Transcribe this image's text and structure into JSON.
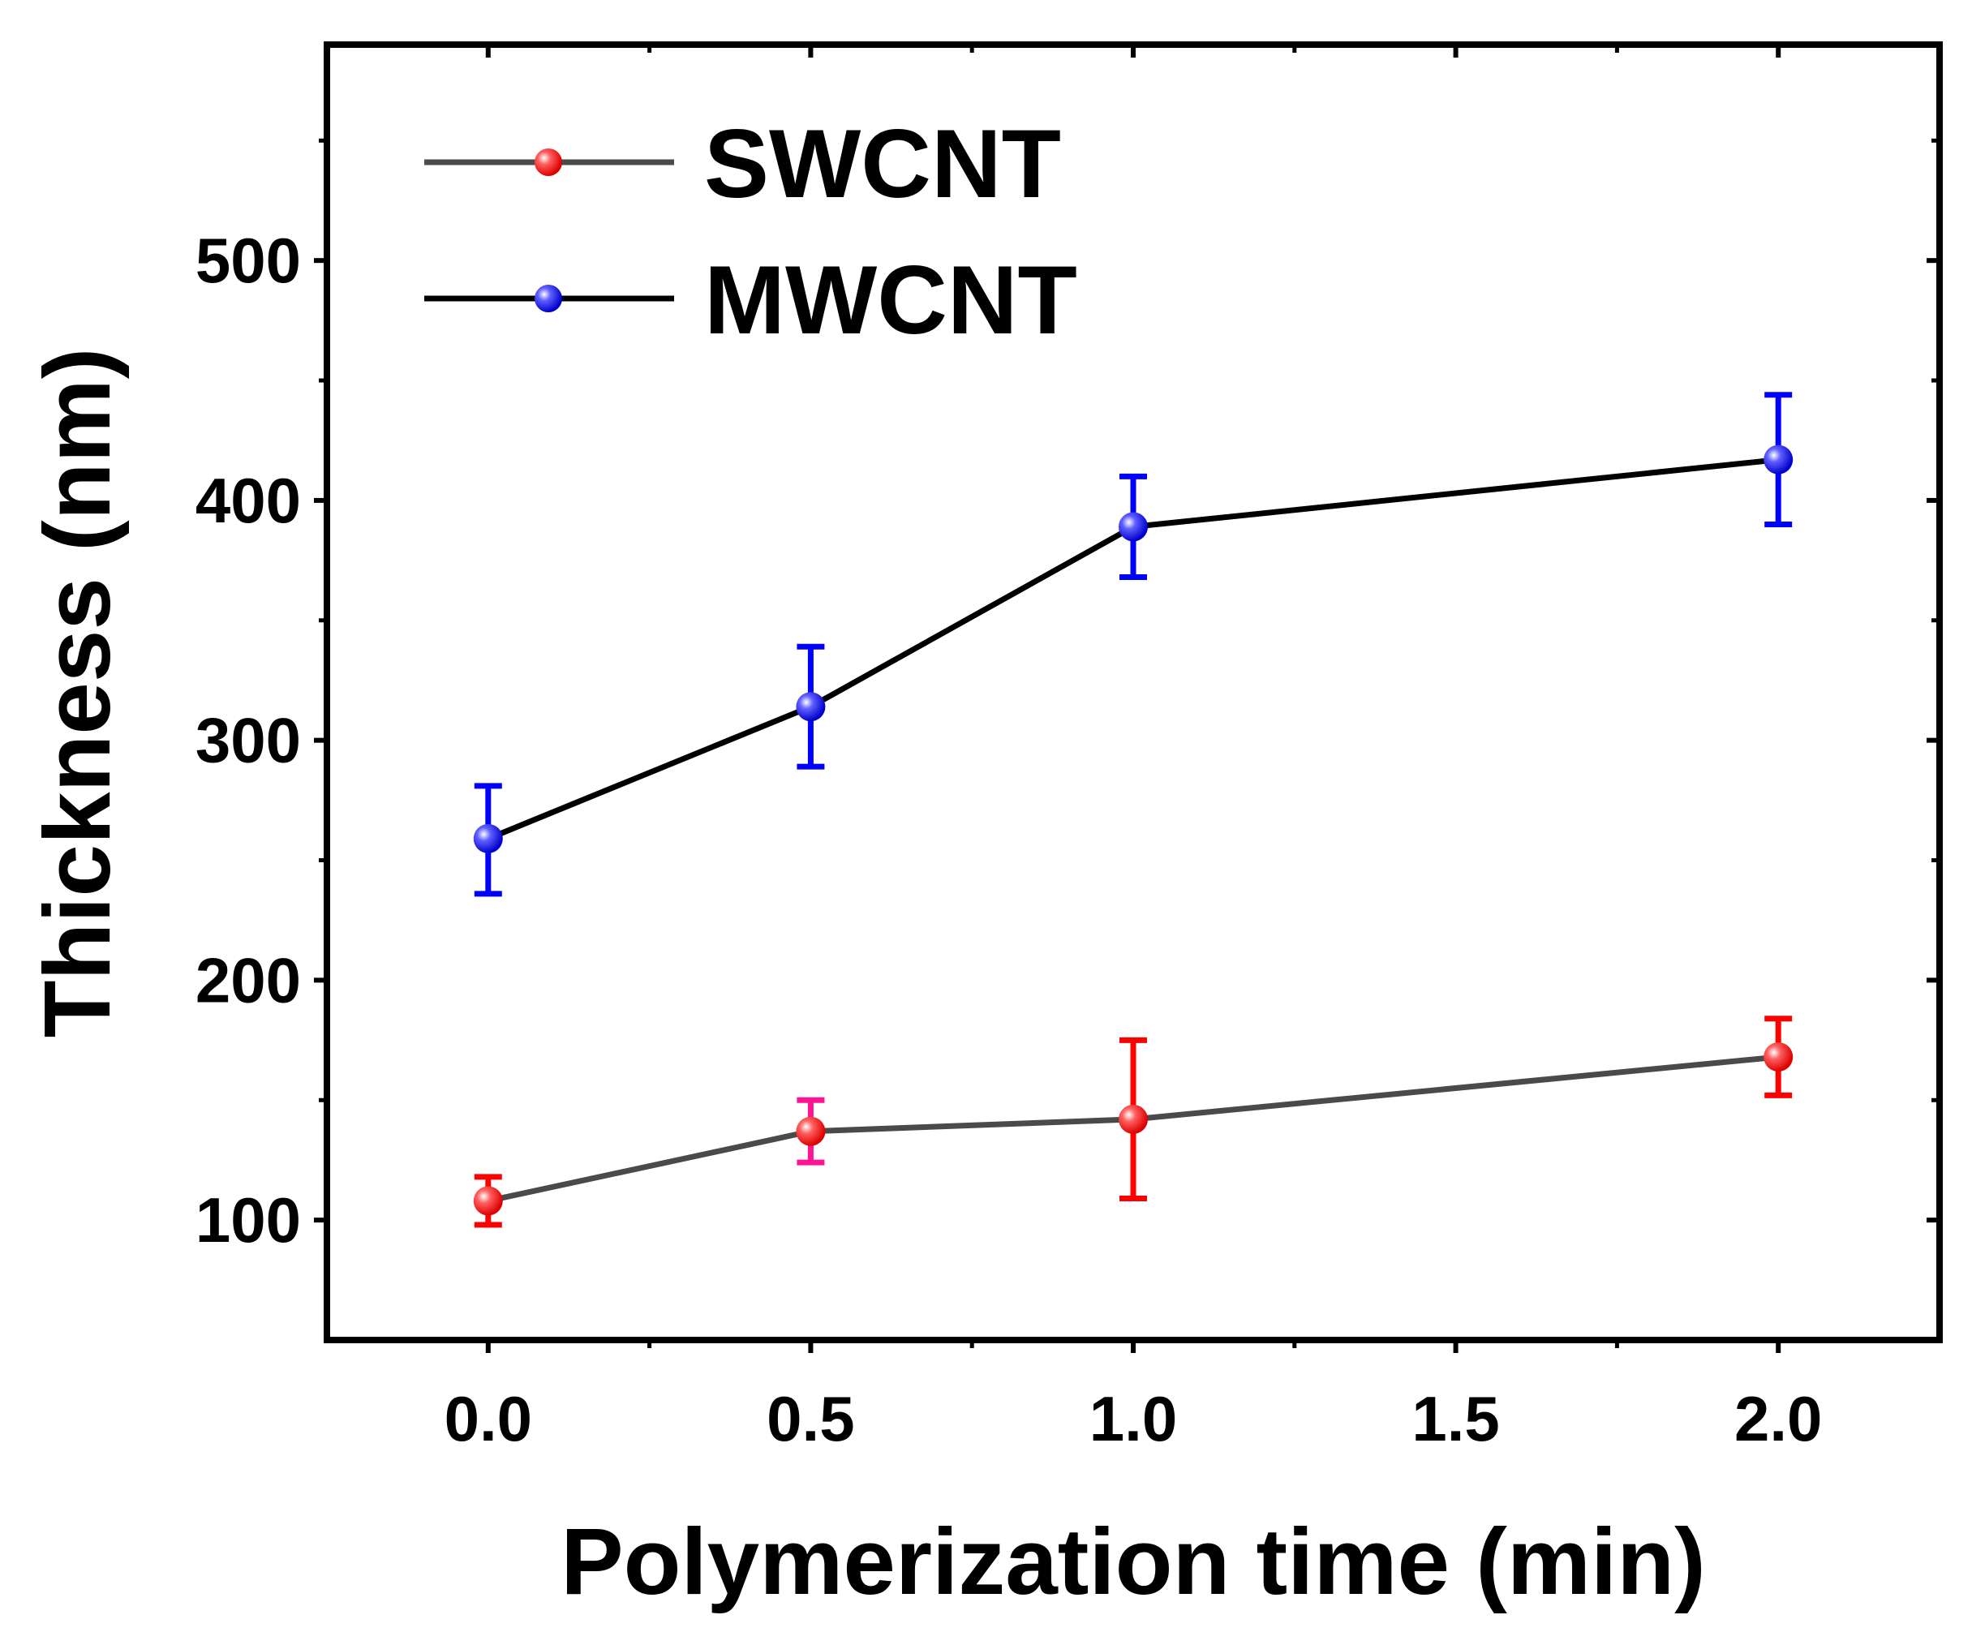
{
  "chart_data": {
    "type": "line",
    "xlabel": "Polymerization time (min)",
    "ylabel": "Thickness (nm)",
    "xlim": [
      -0.25,
      2.25
    ],
    "ylim": [
      50,
      590
    ],
    "x_ticks": [
      0.0,
      0.5,
      1.0,
      1.5,
      2.0
    ],
    "x_tick_labels": [
      "0.0",
      "0.5",
      "1.0",
      "1.5",
      "2.0"
    ],
    "y_ticks": [
      100,
      200,
      300,
      400,
      500
    ],
    "y_tick_labels": [
      "100",
      "200",
      "300",
      "400",
      "500"
    ],
    "legend_position": "top-left",
    "grid": false,
    "series": [
      {
        "name": "SWCNT",
        "line_color": "#4a4a4a",
        "marker_color": "#ff0000",
        "x": [
          0.0,
          0.5,
          1.0,
          2.0
        ],
        "y": [
          108,
          137,
          142,
          168
        ],
        "err_low": [
          98,
          124,
          109,
          152
        ],
        "err_high": [
          118,
          150,
          175,
          184
        ],
        "err_colors": [
          "#ff0000",
          "#ff1493",
          "#ff0000",
          "#ff0000"
        ]
      },
      {
        "name": "MWCNT",
        "line_color": "#000000",
        "marker_color": "#0000ff",
        "x": [
          0.0,
          0.5,
          1.0,
          2.0
        ],
        "y": [
          259,
          314,
          389,
          417
        ],
        "err_low": [
          236,
          289,
          368,
          390
        ],
        "err_high": [
          281,
          339,
          410,
          444
        ],
        "err_colors": [
          "#0000ff",
          "#0000ff",
          "#0000ff",
          "#0000ff"
        ]
      }
    ]
  }
}
